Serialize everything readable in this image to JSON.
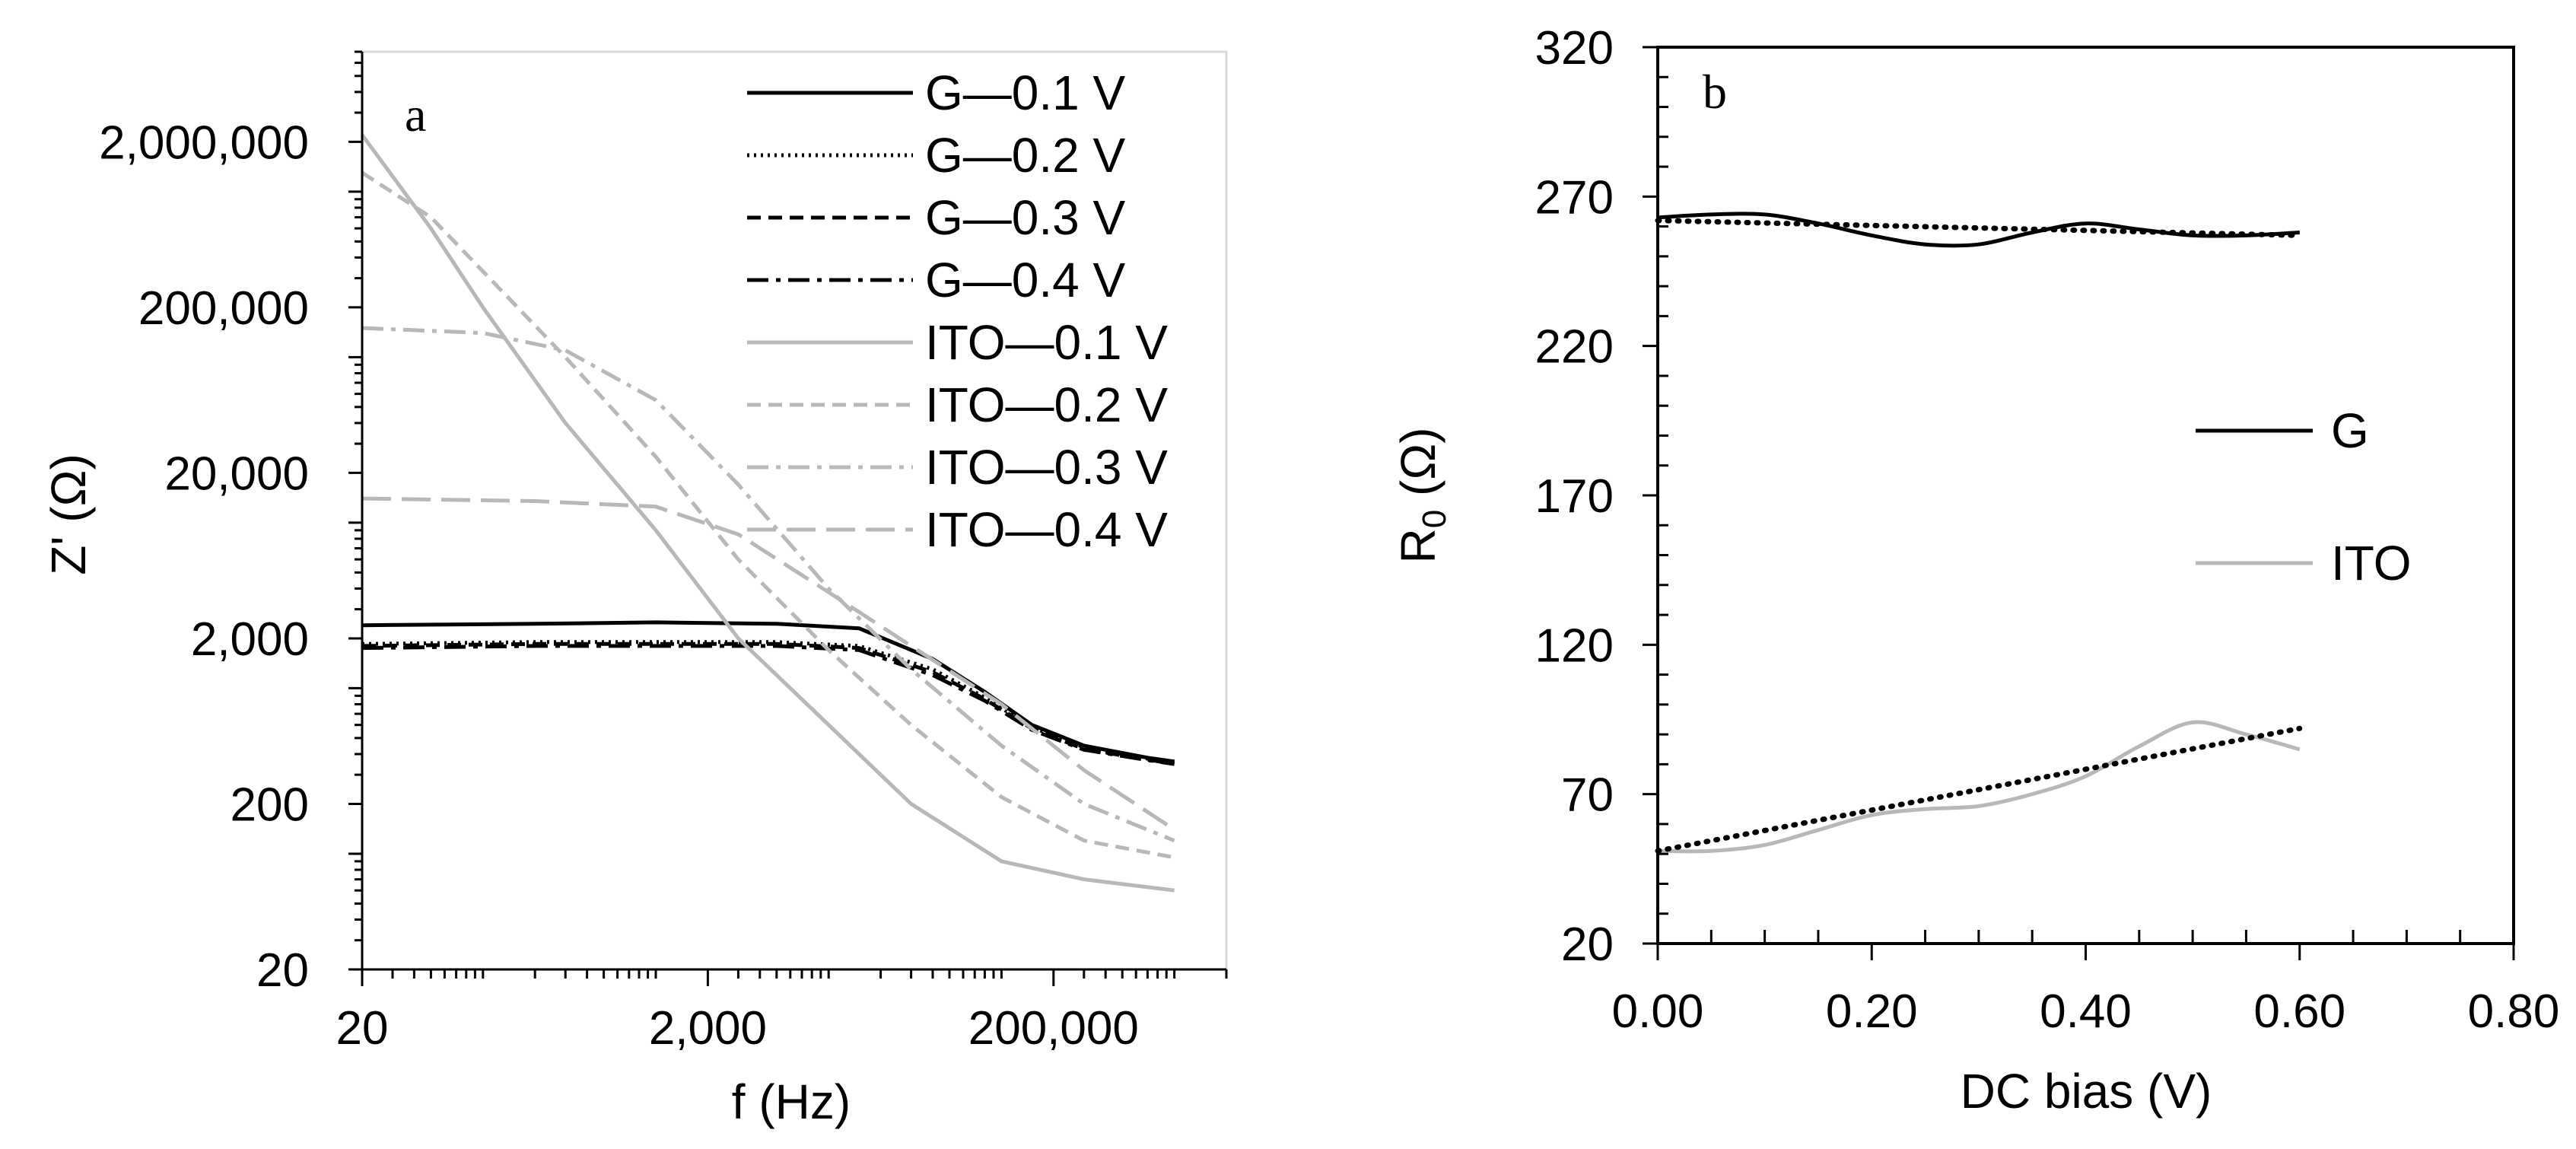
{
  "chart_data": [
    {
      "id": "a",
      "type": "line",
      "panel_label": "a",
      "xscale": "log",
      "yscale": "log",
      "xlabel": "f (Hz)",
      "ylabel": "Z' (Ω)",
      "xlim": [
        20,
        2000000
      ],
      "ylim": [
        20,
        7000000
      ],
      "x_ticks": [
        {
          "value": 20,
          "label": "20"
        },
        {
          "value": 2000,
          "label": "2,000"
        },
        {
          "value": 200000,
          "label": "200,000"
        }
      ],
      "y_ticks": [
        {
          "value": 20,
          "label": "20"
        },
        {
          "value": 200,
          "label": "200"
        },
        {
          "value": 2000,
          "label": "2,000"
        },
        {
          "value": 20000,
          "label": "20,000"
        },
        {
          "value": 200000,
          "label": "200,000"
        },
        {
          "value": 2000000,
          "label": "2,000,000"
        }
      ],
      "legend_position": "top-right",
      "series": [
        {
          "name": "G—0.1 V",
          "color": "#000000",
          "dash": "solid",
          "points": [
            [
              20,
              2400
            ],
            [
              200,
              2450
            ],
            [
              1000,
              2500
            ],
            [
              5000,
              2450
            ],
            [
              15000,
              2300
            ],
            [
              40000,
              1500
            ],
            [
              80000,
              950
            ],
            [
              150000,
              600
            ],
            [
              300000,
              450
            ],
            [
              700000,
              380
            ],
            [
              1000000,
              360
            ]
          ]
        },
        {
          "name": "G—0.2 V",
          "color": "#000000",
          "dash": "dotted",
          "points": [
            [
              20,
              1850
            ],
            [
              200,
              1900
            ],
            [
              1000,
              1900
            ],
            [
              5000,
              1900
            ],
            [
              15000,
              1800
            ],
            [
              40000,
              1300
            ],
            [
              80000,
              880
            ],
            [
              150000,
              580
            ],
            [
              300000,
              440
            ],
            [
              700000,
              375
            ],
            [
              1000000,
              355
            ]
          ]
        },
        {
          "name": "G—0.3 V",
          "color": "#000000",
          "dash": "dashed",
          "points": [
            [
              20,
              1800
            ],
            [
              200,
              1850
            ],
            [
              1000,
              1850
            ],
            [
              5000,
              1850
            ],
            [
              15000,
              1750
            ],
            [
              40000,
              1250
            ],
            [
              80000,
              860
            ],
            [
              150000,
              570
            ],
            [
              300000,
              430
            ],
            [
              700000,
              370
            ],
            [
              1000000,
              350
            ]
          ]
        },
        {
          "name": "G—0.4 V",
          "color": "#000000",
          "dash": "dashdot",
          "points": [
            [
              20,
              1750
            ],
            [
              200,
              1800
            ],
            [
              1000,
              1800
            ],
            [
              5000,
              1800
            ],
            [
              15000,
              1700
            ],
            [
              40000,
              1200
            ],
            [
              80000,
              840
            ],
            [
              150000,
              560
            ],
            [
              300000,
              425
            ],
            [
              700000,
              368
            ],
            [
              1000000,
              348
            ]
          ]
        },
        {
          "name": "ITO—0.1 V",
          "color": "#b8b8b8",
          "dash": "solid",
          "points": [
            [
              20,
              2200000
            ],
            [
              50,
              600000
            ],
            [
              100,
              200000
            ],
            [
              300,
              40000
            ],
            [
              1000,
              9000
            ],
            [
              3000,
              2000
            ],
            [
              10000,
              600
            ],
            [
              30000,
              200
            ],
            [
              100000,
              90
            ],
            [
              300000,
              70
            ],
            [
              1000000,
              60
            ]
          ]
        },
        {
          "name": "ITO—0.2 V",
          "color": "#b8b8b8",
          "dash": "dashed",
          "points": [
            [
              20,
              1300000
            ],
            [
              50,
              700000
            ],
            [
              100,
              330000
            ],
            [
              300,
              100000
            ],
            [
              1000,
              25000
            ],
            [
              3000,
              6000
            ],
            [
              10000,
              1700
            ],
            [
              30000,
              600
            ],
            [
              100000,
              220
            ],
            [
              300000,
              120
            ],
            [
              1000000,
              95
            ]
          ]
        },
        {
          "name": "ITO—0.3 V",
          "color": "#b8b8b8",
          "dash": "dashdot",
          "points": [
            [
              20,
              150000
            ],
            [
              100,
              140000
            ],
            [
              300,
              110000
            ],
            [
              1000,
              55000
            ],
            [
              3000,
              17000
            ],
            [
              10000,
              4000
            ],
            [
              30000,
              1300
            ],
            [
              100000,
              450
            ],
            [
              300000,
              200
            ],
            [
              1000000,
              120
            ]
          ]
        },
        {
          "name": "ITO—0.4 V",
          "color": "#b8b8b8",
          "dash": "longdash",
          "points": [
            [
              20,
              14000
            ],
            [
              200,
              13500
            ],
            [
              1000,
              12500
            ],
            [
              3000,
              8500
            ],
            [
              10000,
              3800
            ],
            [
              30000,
              1800
            ],
            [
              100000,
              800
            ],
            [
              300000,
              320
            ],
            [
              1000000,
              140
            ]
          ]
        }
      ]
    },
    {
      "id": "b",
      "type": "line",
      "panel_label": "b",
      "xlabel": "DC bias (V)",
      "ylabel": "R",
      "ylabel_sub": "0",
      "ylabel_unit": " (Ω)",
      "xlim": [
        0,
        0.8
      ],
      "ylim": [
        20,
        320
      ],
      "x_ticks": [
        {
          "value": 0.0,
          "label": "0.00"
        },
        {
          "value": 0.2,
          "label": "0.20"
        },
        {
          "value": 0.4,
          "label": "0.40"
        },
        {
          "value": 0.6,
          "label": "0.60"
        },
        {
          "value": 0.8,
          "label": "0.80"
        }
      ],
      "y_ticks": [
        {
          "value": 20,
          "label": "20"
        },
        {
          "value": 70,
          "label": "70"
        },
        {
          "value": 120,
          "label": "120"
        },
        {
          "value": 170,
          "label": "170"
        },
        {
          "value": 220,
          "label": "220"
        },
        {
          "value": 270,
          "label": "270"
        },
        {
          "value": 320,
          "label": "320"
        }
      ],
      "legend_position": "center-right",
      "series": [
        {
          "name": "G",
          "color": "#000000",
          "points": [
            [
              0.0,
              263
            ],
            [
              0.05,
              264
            ],
            [
              0.1,
              264
            ],
            [
              0.15,
              261
            ],
            [
              0.2,
              257
            ],
            [
              0.25,
              254
            ],
            [
              0.3,
              254
            ],
            [
              0.35,
              258
            ],
            [
              0.4,
              261
            ],
            [
              0.45,
              259
            ],
            [
              0.5,
              257
            ],
            [
              0.55,
              257
            ],
            [
              0.6,
              258
            ]
          ],
          "trend": [
            [
              0.0,
              262
            ],
            [
              0.6,
              257
            ]
          ]
        },
        {
          "name": "ITO",
          "color": "#b8b8b8",
          "points": [
            [
              0.0,
              51
            ],
            [
              0.05,
              51
            ],
            [
              0.1,
              53
            ],
            [
              0.15,
              58
            ],
            [
              0.2,
              63
            ],
            [
              0.25,
              65
            ],
            [
              0.3,
              66
            ],
            [
              0.35,
              70
            ],
            [
              0.4,
              76
            ],
            [
              0.45,
              86
            ],
            [
              0.5,
              94
            ],
            [
              0.55,
              90
            ],
            [
              0.6,
              85
            ]
          ],
          "trend": [
            [
              0.0,
              51
            ],
            [
              0.6,
              92
            ]
          ]
        }
      ]
    }
  ]
}
